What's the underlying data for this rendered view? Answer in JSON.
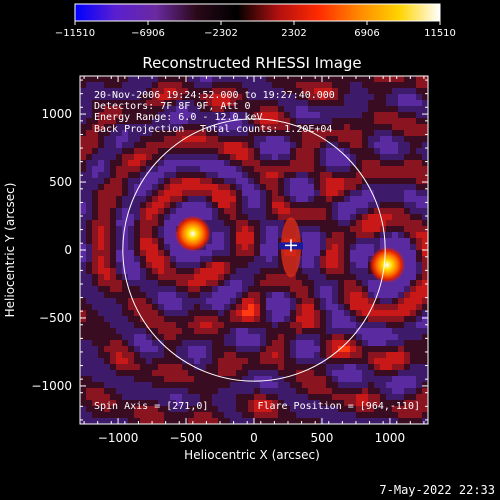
{
  "colorbar": {
    "ticks": [
      "-11510",
      "-6906",
      "-2302",
      "2302",
      "6906",
      "11510"
    ],
    "colors": [
      "#0000ff",
      "#5a1fd0",
      "#6a2aa0",
      "#2a0818",
      "#000000",
      "#b01010",
      "#ff2a00",
      "#ff8800",
      "#ffd400",
      "#ffffff"
    ]
  },
  "chart_data": {
    "type": "heatmap",
    "title": "Reconstructed RHESSI Image",
    "xlabel": "Heliocentric X (arcsec)",
    "ylabel": "Heliocentric Y (arcsec)",
    "xlim": [
      -1280,
      1280
    ],
    "ylim": [
      -1280,
      1280
    ],
    "xticks": [
      -1000,
      -500,
      0,
      500,
      1000
    ],
    "yticks": [
      -1000,
      -500,
      0,
      500,
      1000
    ],
    "xtick_labels": [
      "−1000",
      "−500",
      "0",
      "500",
      "1000"
    ],
    "ytick_labels": [
      "−1000",
      "−500",
      "0",
      "500",
      "1000"
    ],
    "solar_disk_radius": 965,
    "flare_marker": [
      272,
      34
    ],
    "hot_sources": [
      {
        "x": -450,
        "y": 120,
        "level": "peak"
      },
      {
        "x": 980,
        "y": -110,
        "level": "peak"
      }
    ],
    "annotations": {
      "time": "20-Nov-2006 19:24:52.000 to 19:27:40.000",
      "detectors": "Detectors: 7F 8F 9F, Att 0",
      "energy": "Energy Range: 6.0 - 12.0 keV",
      "method": "Back Projection",
      "counts": "Total counts: 1.20E+04",
      "spin_axis": "Spin Axis = [271,0]",
      "flare_position": "Flare Position = [964,-110]"
    }
  },
  "footer": {
    "date": "7-May-2022 22:33"
  }
}
